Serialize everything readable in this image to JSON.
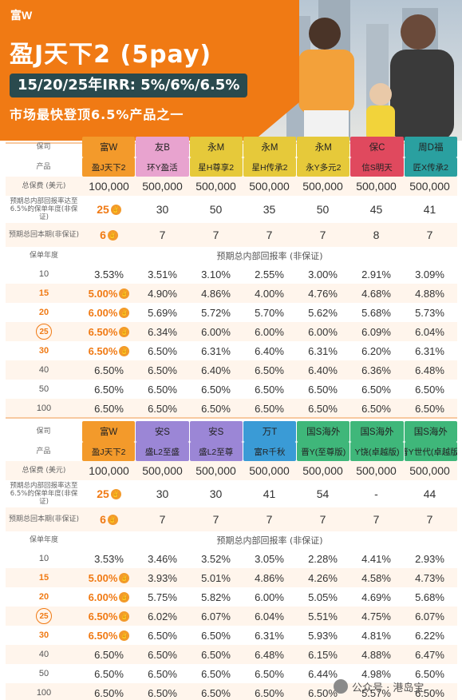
{
  "header": {
    "brand": "富W",
    "title": "盈J天下2 (5pay)",
    "irr": "15/20/25年IRR: 5%/6%/6.5%",
    "tagline": "市场最快登顶6.5%产品之一"
  },
  "colors": {
    "accent": "#f07a14",
    "irr_bg": "#2a4a4e",
    "stripe": "#fff5ec"
  },
  "icon_names": [
    "thumbs-up-icon",
    "circled-number-icon"
  ],
  "labels": {
    "company": "保司",
    "product": "产品",
    "premium": "总保费 (美元)",
    "reach": "预期总内部回报率达至6.5%的保单年度(非保证)",
    "breakeven": "预期总回本期(非保证)",
    "policy_year": "保单年度",
    "irr_header": "预期总内部回报率 (非保证)"
  },
  "table1": {
    "companies": [
      {
        "name": "富W",
        "product": "盈J天下2",
        "color": "#f39a2b"
      },
      {
        "name": "友B",
        "product": "环Y盈活",
        "color": "#e8a3cf"
      },
      {
        "name": "永M",
        "product": "星H尊享2",
        "color": "#e6c93a"
      },
      {
        "name": "永M",
        "product": "星H传承2",
        "color": "#e6c93a"
      },
      {
        "name": "永M",
        "product": "永Y多元2",
        "color": "#e6c93a"
      },
      {
        "name": "保C",
        "product": "信S明天",
        "color": "#e0495e"
      },
      {
        "name": "周D福",
        "product": "匠X传承2",
        "color": "#2aa0a0"
      }
    ],
    "premium": [
      "100,000",
      "500,000",
      "500,000",
      "500,000",
      "500,000",
      "500,000",
      "500,000"
    ],
    "reach": [
      "25",
      "30",
      "50",
      "35",
      "50",
      "45",
      "41"
    ],
    "breakeven": [
      "6",
      "7",
      "7",
      "7",
      "7",
      "8",
      "7"
    ],
    "years": [
      {
        "year": "10",
        "vals": [
          "3.53%",
          "3.51%",
          "3.10%",
          "2.55%",
          "3.00%",
          "2.91%",
          "3.09%"
        ]
      },
      {
        "year": "15",
        "vals": [
          "5.00%",
          "4.90%",
          "4.86%",
          "4.00%",
          "4.76%",
          "4.68%",
          "4.88%"
        ]
      },
      {
        "year": "20",
        "vals": [
          "6.00%",
          "5.69%",
          "5.72%",
          "5.70%",
          "5.62%",
          "5.68%",
          "5.73%"
        ]
      },
      {
        "year": "25",
        "vals": [
          "6.50%",
          "6.34%",
          "6.00%",
          "6.00%",
          "6.00%",
          "6.09%",
          "6.04%"
        ]
      },
      {
        "year": "30",
        "vals": [
          "6.50%",
          "6.50%",
          "6.31%",
          "6.40%",
          "6.31%",
          "6.20%",
          "6.31%"
        ]
      },
      {
        "year": "40",
        "vals": [
          "6.50%",
          "6.50%",
          "6.40%",
          "6.50%",
          "6.40%",
          "6.36%",
          "6.48%"
        ]
      },
      {
        "year": "50",
        "vals": [
          "6.50%",
          "6.50%",
          "6.50%",
          "6.50%",
          "6.50%",
          "6.50%",
          "6.50%"
        ]
      },
      {
        "year": "100",
        "vals": [
          "6.50%",
          "6.50%",
          "6.50%",
          "6.50%",
          "6.50%",
          "6.50%",
          "6.50%"
        ]
      }
    ]
  },
  "table2": {
    "companies": [
      {
        "name": "富W",
        "product": "盈J天下2",
        "color": "#f39a2b"
      },
      {
        "name": "安S",
        "product": "盛L2至盛",
        "color": "#9b86d6"
      },
      {
        "name": "安S",
        "product": "盛L2至尊",
        "color": "#9b86d6"
      },
      {
        "name": "万T",
        "product": "富R千秋",
        "color": "#3a9bd6"
      },
      {
        "name": "国S海外",
        "product": "晋Y(至尊版)",
        "color": "#3fb77a"
      },
      {
        "name": "国S海外",
        "product": "Y饶(卓越版)",
        "color": "#3fb77a"
      },
      {
        "name": "国S海外",
        "product": "晋Y世代(卓越版)",
        "color": "#3fb77a"
      }
    ],
    "premium": [
      "100,000",
      "500,000",
      "500,000",
      "500,000",
      "500,000",
      "500,000",
      "500,000"
    ],
    "reach": [
      "25",
      "30",
      "30",
      "41",
      "54",
      "-",
      "44"
    ],
    "breakeven": [
      "6",
      "7",
      "7",
      "7",
      "7",
      "7",
      "7"
    ],
    "years": [
      {
        "year": "10",
        "vals": [
          "3.53%",
          "3.46%",
          "3.52%",
          "3.05%",
          "2.28%",
          "4.41%",
          "2.93%"
        ]
      },
      {
        "year": "15",
        "vals": [
          "5.00%",
          "3.93%",
          "5.01%",
          "4.86%",
          "4.26%",
          "4.58%",
          "4.73%"
        ]
      },
      {
        "year": "20",
        "vals": [
          "6.00%",
          "5.75%",
          "5.82%",
          "6.00%",
          "5.05%",
          "4.69%",
          "5.68%"
        ]
      },
      {
        "year": "25",
        "vals": [
          "6.50%",
          "6.02%",
          "6.07%",
          "6.04%",
          "5.51%",
          "4.75%",
          "6.07%"
        ]
      },
      {
        "year": "30",
        "vals": [
          "6.50%",
          "6.50%",
          "6.50%",
          "6.31%",
          "5.93%",
          "4.81%",
          "6.22%"
        ]
      },
      {
        "year": "40",
        "vals": [
          "6.50%",
          "6.50%",
          "6.50%",
          "6.48%",
          "6.15%",
          "4.88%",
          "6.47%"
        ]
      },
      {
        "year": "50",
        "vals": [
          "6.50%",
          "6.50%",
          "6.50%",
          "6.50%",
          "6.44%",
          "4.98%",
          "6.50%"
        ]
      },
      {
        "year": "100",
        "vals": [
          "6.50%",
          "6.50%",
          "6.50%",
          "6.50%",
          "6.50%",
          "5.57%",
          "6.50%"
        ]
      }
    ]
  },
  "watermark": {
    "text": "公众号 · 港岛宝"
  }
}
